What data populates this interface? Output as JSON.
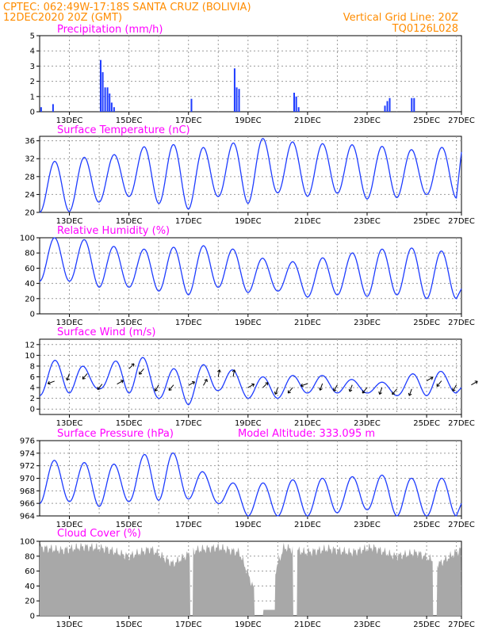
{
  "header": {
    "line1_left": "CPTEC:    062:49W-17:18S   SANTA CRUZ (BOLIVIA)",
    "line2_left": "12DEC2020 20Z (GMT)",
    "line2_right": "Vertical Grid Line: 20Z",
    "line3_right": "TQ0126L028"
  },
  "x_axis": {
    "start": "12DEC2020 20Z",
    "end": "27DEC2020 00Z",
    "tick_labels": [
      "13DEC",
      "15DEC",
      "17DEC",
      "19DEC",
      "21DEC",
      "23DEC",
      "25DEC",
      "27DEC"
    ],
    "tick_day_index": [
      1,
      3,
      5,
      7,
      9,
      11,
      13,
      15
    ],
    "minor_grid_days": [
      1,
      2,
      3,
      4,
      5,
      6,
      7,
      8,
      9,
      10,
      11,
      12,
      13,
      14
    ],
    "grid": "dashed gray, vertical at each day (20Z)"
  },
  "colors": {
    "series": "#1e3cff",
    "bars": "#1e3cff",
    "cloud": "#a8a8a8",
    "header": "#ff8c00",
    "titles": "#ff00ff"
  },
  "chart_data": [
    {
      "type": "bar",
      "title": "Precipitation (mm/h)",
      "ylim": [
        0,
        5
      ],
      "yticks": [
        0,
        1,
        2,
        3,
        4,
        5
      ],
      "bars": [
        {
          "x": 0.05,
          "v": 0.3
        },
        {
          "x": 0.45,
          "v": 0.5
        },
        {
          "x": 2.05,
          "v": 3.4
        },
        {
          "x": 2.12,
          "v": 2.6
        },
        {
          "x": 2.2,
          "v": 1.6
        },
        {
          "x": 2.28,
          "v": 1.6
        },
        {
          "x": 2.35,
          "v": 1.2
        },
        {
          "x": 2.42,
          "v": 0.6
        },
        {
          "x": 2.5,
          "v": 0.3
        },
        {
          "x": 5.1,
          "v": 0.85
        },
        {
          "x": 6.55,
          "v": 2.85
        },
        {
          "x": 6.62,
          "v": 1.6
        },
        {
          "x": 6.7,
          "v": 1.5
        },
        {
          "x": 8.55,
          "v": 1.25
        },
        {
          "x": 8.62,
          "v": 1.0
        },
        {
          "x": 8.7,
          "v": 0.3
        },
        {
          "x": 11.6,
          "v": 0.4
        },
        {
          "x": 11.68,
          "v": 0.7
        },
        {
          "x": 11.76,
          "v": 0.9
        },
        {
          "x": 12.5,
          "v": 0.9
        },
        {
          "x": 12.58,
          "v": 0.9
        }
      ]
    },
    {
      "type": "line",
      "title": "Surface Temperature (nC)",
      "ylim": [
        20,
        37
      ],
      "yticks": [
        20,
        24,
        28,
        32,
        36
      ],
      "base_min": [
        20.0,
        20.2,
        22.3,
        23.6,
        22.0,
        20.7,
        23.6,
        22.0,
        24.4,
        23.6,
        24.3,
        23.0,
        23.3,
        24.0,
        23.2
      ],
      "base_max": [
        30.5,
        32.3,
        32.3,
        33.5,
        35.8,
        34.5,
        34.5,
        36.5,
        36.5,
        35.0,
        35.7,
        34.5,
        35.0,
        33.0,
        36.0
      ],
      "end_value": 33.5
    },
    {
      "type": "line",
      "title": "Relative Humidity (%)",
      "ylim": [
        0,
        100
      ],
      "yticks": [
        0,
        20,
        40,
        60,
        80,
        100
      ],
      "base_min": [
        43,
        43,
        35,
        35,
        30,
        25,
        35,
        28,
        30,
        22,
        25,
        23,
        25,
        20,
        20
      ],
      "base_max": [
        100,
        100,
        95,
        82,
        88,
        87,
        92,
        78,
        68,
        69,
        78,
        82,
        88,
        85,
        80
      ],
      "end_value": 33
    },
    {
      "type": "line",
      "title": "Surface Wind (m/s)",
      "ylim": [
        -1,
        13
      ],
      "yticks": [
        0,
        2,
        4,
        6,
        8,
        10,
        12
      ],
      "base_min": [
        2.5,
        3.0,
        3.8,
        3.0,
        2.0,
        0.8,
        3.5,
        2.0,
        2.0,
        3.0,
        3.0,
        3.0,
        2.5,
        2.5,
        3.0
      ],
      "base_max": [
        7.9,
        10.2,
        5.5,
        12.0,
        7.0,
        8.0,
        8.5,
        6.0,
        6.0,
        6.5,
        6.0,
        5.0,
        5.0,
        8.0,
        6.0
      ],
      "end_value": 4.0,
      "arrows": [
        {
          "x": 0.5,
          "dir": 250
        },
        {
          "x": 1.0,
          "dir": 200
        },
        {
          "x": 1.6,
          "dir": 220
        },
        {
          "x": 2.1,
          "dir": 220
        },
        {
          "x": 2.6,
          "dir": 60
        },
        {
          "x": 3.0,
          "dir": 45
        },
        {
          "x": 3.5,
          "dir": 220
        },
        {
          "x": 4.0,
          "dir": 210
        },
        {
          "x": 4.5,
          "dir": 220
        },
        {
          "x": 5.0,
          "dir": 60
        },
        {
          "x": 5.5,
          "dir": 30
        },
        {
          "x": 6.0,
          "dir": 10
        },
        {
          "x": 6.5,
          "dir": 10
        },
        {
          "x": 7.0,
          "dir": 60
        },
        {
          "x": 7.5,
          "dir": 45
        },
        {
          "x": 8.0,
          "dir": 200
        },
        {
          "x": 8.5,
          "dir": 220
        },
        {
          "x": 9.0,
          "dir": 250
        },
        {
          "x": 9.5,
          "dir": 200
        },
        {
          "x": 10.0,
          "dir": 210
        },
        {
          "x": 10.5,
          "dir": 200
        },
        {
          "x": 11.0,
          "dir": 220
        },
        {
          "x": 11.5,
          "dir": 200
        },
        {
          "x": 12.0,
          "dir": 220
        },
        {
          "x": 12.5,
          "dir": 200
        },
        {
          "x": 13.0,
          "dir": 60
        },
        {
          "x": 13.5,
          "dir": 220
        },
        {
          "x": 14.0,
          "dir": 210
        },
        {
          "x": 14.5,
          "dir": 60
        }
      ]
    },
    {
      "type": "line",
      "title": "Surface Pressure (hPa)",
      "annotation": "Model Altitude: 333.095 m",
      "ylim": [
        964,
        976
      ],
      "yticks": [
        964,
        966,
        968,
        970,
        972,
        974,
        976
      ],
      "base_min": [
        966.0,
        966.3,
        965.5,
        966.3,
        966.5,
        966.7,
        966.0,
        964.0,
        964.0,
        964.0,
        964.5,
        965.0,
        964.0,
        964.0,
        964.0
      ],
      "base_max": [
        973.2,
        972.5,
        972.5,
        972.0,
        975.5,
        972.5,
        969.5,
        969.0,
        969.5,
        970.0,
        970.0,
        970.5,
        970.5,
        969.5,
        970.5
      ],
      "end_value": 966.0
    },
    {
      "type": "area",
      "title": "Cloud Cover (%)",
      "ylim": [
        0,
        100
      ],
      "yticks": [
        0,
        20,
        40,
        60,
        80,
        100
      ],
      "levels": [
        92,
        88,
        93,
        90,
        80,
        90,
        70,
        88,
        92,
        85,
        10,
        92,
        85,
        90,
        85,
        92,
        80,
        85,
        70,
        90
      ],
      "gaps": [
        [
          5.05,
          5.15
        ],
        [
          7.2,
          7.9
        ],
        [
          8.5,
          8.65
        ],
        [
          13.2,
          13.35
        ]
      ]
    }
  ]
}
